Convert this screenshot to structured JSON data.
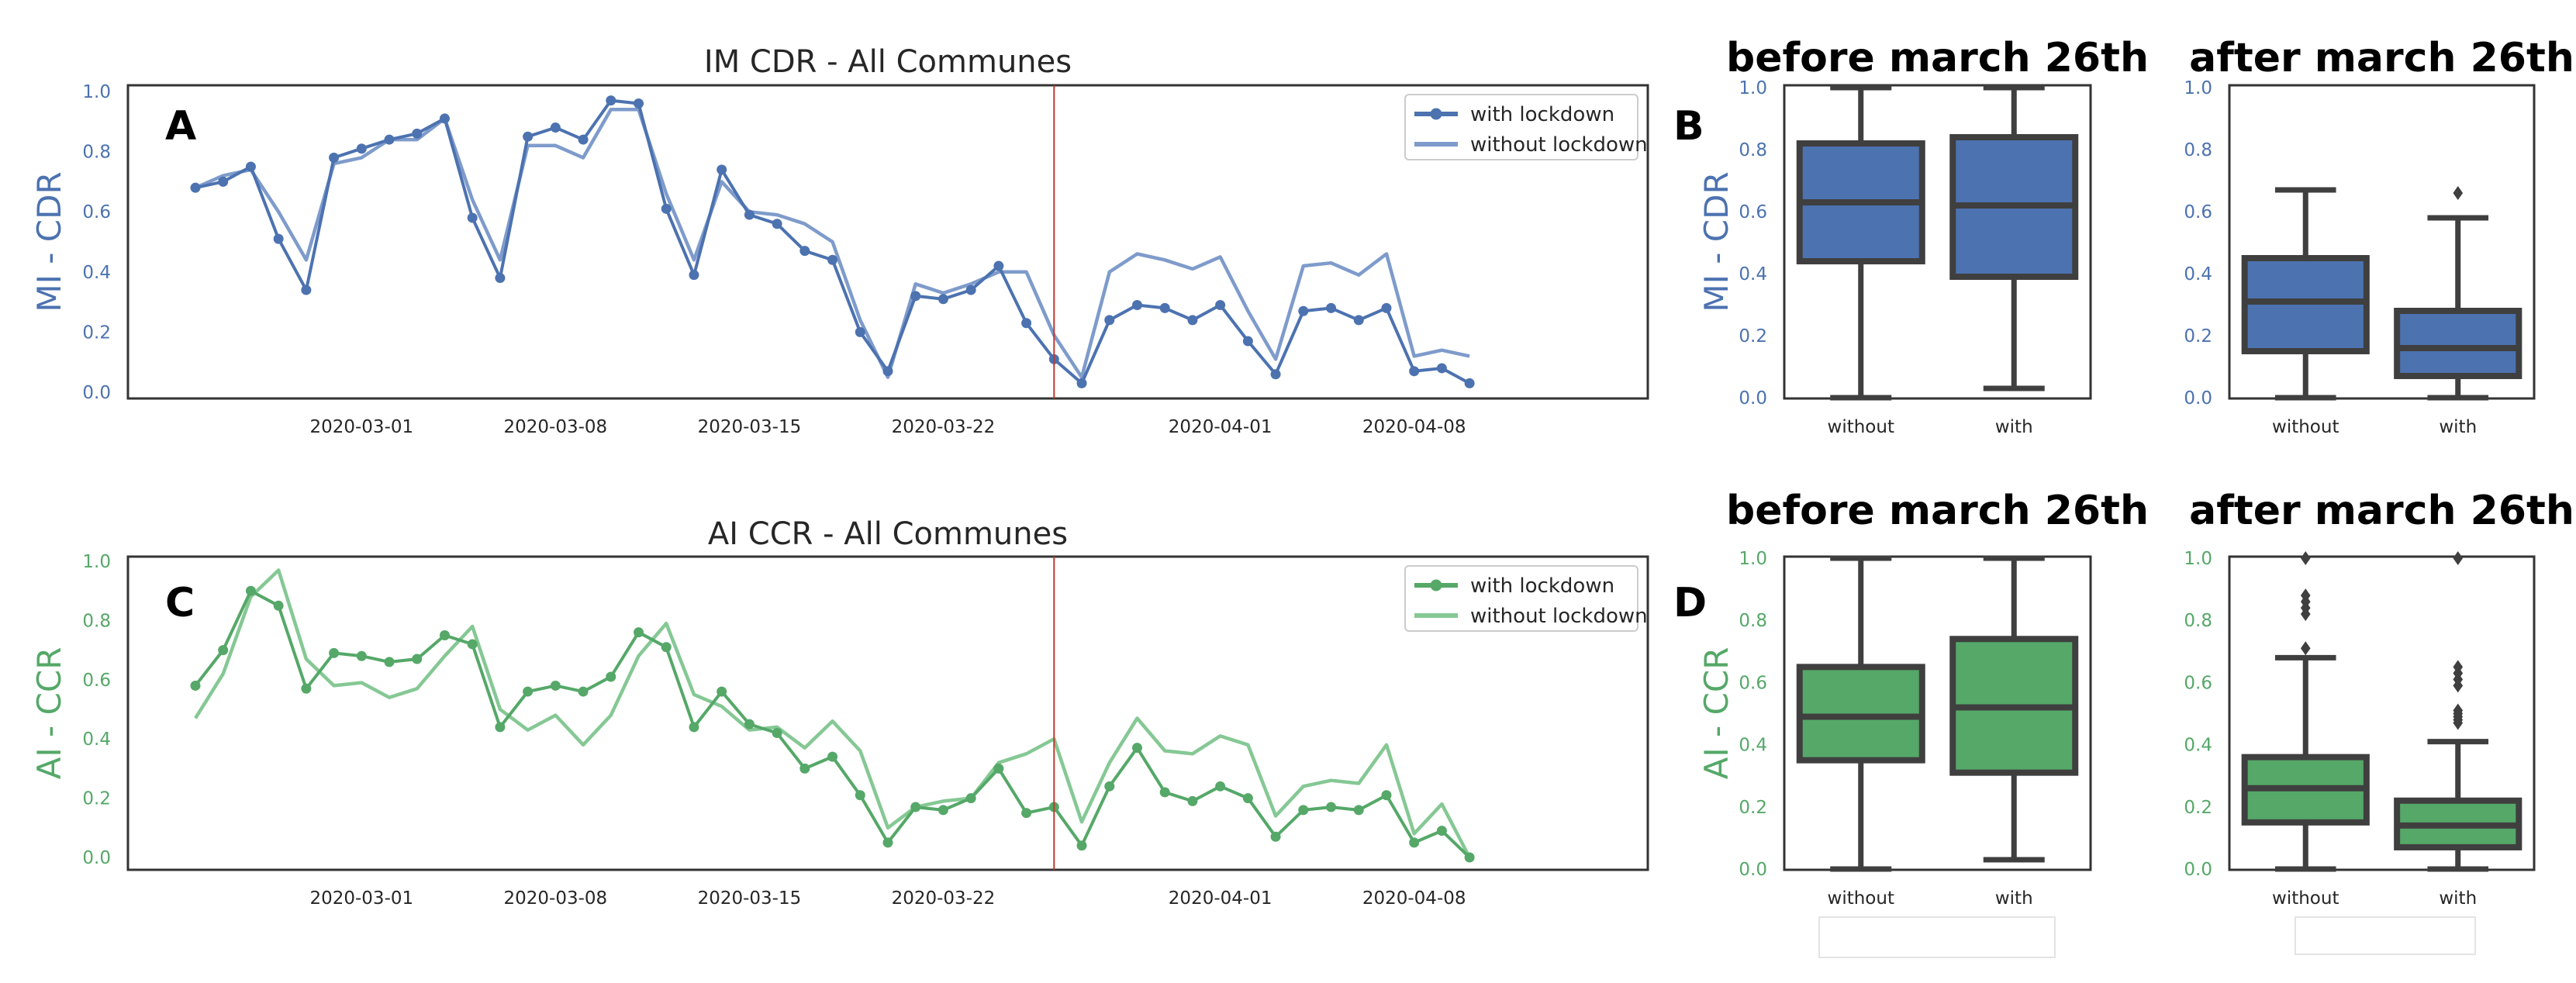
{
  "colors": {
    "blue": "#4C72B0",
    "blue_light": "#7E9BCB",
    "green": "#55A868",
    "green_light": "#85C894",
    "box_edge": "#3F3F3F",
    "vline": "#C0392B",
    "axis": "#333333"
  },
  "chart_data": [
    {
      "type": "line",
      "panel": "A",
      "title": "IM CDR - All Communes",
      "ylabel": "MI - CDR",
      "ylim": [
        0.0,
        1.0
      ],
      "yticks": [
        "0.0",
        "0.2",
        "0.4",
        "0.6",
        "0.8",
        "1.0"
      ],
      "x_start": "2020-02-24",
      "x_end": "2020-04-14",
      "xticks": [
        "2020-03-01",
        "2020-03-08",
        "2020-03-15",
        "2020-03-22",
        "2020-04-01",
        "2020-04-08"
      ],
      "vline_date": "2020-03-26",
      "legend_position": "top-right",
      "series": [
        {
          "name": "with lockdown",
          "marker": true,
          "values": [
            0.68,
            0.7,
            0.75,
            0.51,
            0.34,
            0.78,
            0.81,
            0.84,
            0.86,
            0.91,
            0.58,
            0.38,
            0.85,
            0.88,
            0.84,
            0.97,
            0.96,
            0.61,
            0.39,
            0.74,
            0.59,
            0.56,
            0.47,
            0.44,
            0.2,
            0.07,
            0.32,
            0.31,
            0.34,
            0.42,
            0.23,
            0.11,
            0.03,
            0.24,
            0.29,
            0.28,
            0.24,
            0.29,
            0.17,
            0.06,
            0.27,
            0.28,
            0.24,
            0.28,
            0.07,
            0.08,
            0.03
          ]
        },
        {
          "name": "without lockdown",
          "marker": false,
          "values": [
            0.68,
            0.72,
            0.74,
            0.6,
            0.44,
            0.76,
            0.78,
            0.84,
            0.84,
            0.91,
            0.64,
            0.44,
            0.82,
            0.82,
            0.78,
            0.94,
            0.94,
            0.66,
            0.44,
            0.7,
            0.6,
            0.59,
            0.56,
            0.5,
            0.24,
            0.05,
            0.36,
            0.33,
            0.36,
            0.4,
            0.4,
            0.19,
            0.05,
            0.4,
            0.46,
            0.44,
            0.41,
            0.45,
            0.27,
            0.11,
            0.42,
            0.43,
            0.39,
            0.46,
            0.12,
            0.14,
            0.12
          ]
        }
      ]
    },
    {
      "type": "box",
      "panel": "B",
      "title": "before march 26th",
      "ylabel": "MI - CDR",
      "ylim": [
        0.0,
        1.0
      ],
      "yticks": [
        "0.0",
        "0.2",
        "0.4",
        "0.6",
        "0.8",
        "1.0"
      ],
      "categories": [
        "without",
        "with"
      ],
      "boxes": [
        {
          "whislo": 0.0,
          "q1": 0.44,
          "med": 0.63,
          "q3": 0.82,
          "whishi": 1.0,
          "fliers": []
        },
        {
          "whislo": 0.03,
          "q1": 0.39,
          "med": 0.62,
          "q3": 0.84,
          "whishi": 1.0,
          "fliers": []
        }
      ]
    },
    {
      "type": "box",
      "panel": "B2",
      "title": "after march 26th",
      "ylabel": "",
      "ylim": [
        0.0,
        1.0
      ],
      "yticks": [
        "0.0",
        "0.2",
        "0.4",
        "0.6",
        "0.8",
        "1.0"
      ],
      "categories": [
        "without",
        "with"
      ],
      "boxes": [
        {
          "whislo": 0.0,
          "q1": 0.15,
          "med": 0.31,
          "q3": 0.45,
          "whishi": 0.67,
          "fliers": []
        },
        {
          "whislo": 0.0,
          "q1": 0.07,
          "med": 0.16,
          "q3": 0.28,
          "whishi": 0.58,
          "fliers": [
            0.66
          ]
        }
      ]
    },
    {
      "type": "line",
      "panel": "C",
      "title": "AI CCR - All Communes",
      "ylabel": "AI - CCR",
      "ylim": [
        0.0,
        1.0
      ],
      "yticks": [
        "0.0",
        "0.2",
        "0.4",
        "0.6",
        "0.8",
        "1.0"
      ],
      "x_start": "2020-02-24",
      "x_end": "2020-04-14",
      "xticks": [
        "2020-03-01",
        "2020-03-08",
        "2020-03-15",
        "2020-03-22",
        "2020-04-01",
        "2020-04-08"
      ],
      "vline_date": "2020-03-26",
      "legend_position": "top-right",
      "series": [
        {
          "name": "with lockdown",
          "marker": true,
          "values": [
            0.58,
            0.7,
            0.9,
            0.85,
            0.57,
            0.69,
            0.68,
            0.66,
            0.67,
            0.75,
            0.72,
            0.44,
            0.56,
            0.58,
            0.56,
            0.61,
            0.76,
            0.71,
            0.44,
            0.56,
            0.45,
            0.42,
            0.3,
            0.34,
            0.21,
            0.05,
            0.17,
            0.16,
            0.2,
            0.3,
            0.15,
            0.17,
            0.04,
            0.24,
            0.37,
            0.22,
            0.19,
            0.24,
            0.2,
            0.07,
            0.16,
            0.17,
            0.16,
            0.21,
            0.05,
            0.09,
            0.0
          ]
        },
        {
          "name": "without lockdown",
          "marker": false,
          "values": [
            0.47,
            0.62,
            0.88,
            0.97,
            0.67,
            0.58,
            0.59,
            0.54,
            0.57,
            0.68,
            0.78,
            0.5,
            0.43,
            0.48,
            0.38,
            0.48,
            0.68,
            0.79,
            0.55,
            0.51,
            0.43,
            0.44,
            0.37,
            0.46,
            0.36,
            0.1,
            0.17,
            0.19,
            0.2,
            0.32,
            0.35,
            0.4,
            0.12,
            0.32,
            0.47,
            0.36,
            0.35,
            0.41,
            0.38,
            0.14,
            0.24,
            0.26,
            0.25,
            0.38,
            0.08,
            0.18,
            0.0
          ]
        }
      ]
    },
    {
      "type": "box",
      "panel": "D",
      "title": "before march 26th",
      "ylabel": "AI - CCR",
      "ylim": [
        0.0,
        1.0
      ],
      "yticks": [
        "0.0",
        "0.2",
        "0.4",
        "0.6",
        "0.8",
        "1.0"
      ],
      "categories": [
        "without",
        "with"
      ],
      "boxes": [
        {
          "whislo": 0.0,
          "q1": 0.35,
          "med": 0.49,
          "q3": 0.65,
          "whishi": 1.0,
          "fliers": []
        },
        {
          "whislo": 0.03,
          "q1": 0.31,
          "med": 0.52,
          "q3": 0.74,
          "whishi": 1.0,
          "fliers": []
        }
      ]
    },
    {
      "type": "box",
      "panel": "D2",
      "title": "after march 26th",
      "ylabel": "",
      "ylim": [
        0.0,
        1.0
      ],
      "yticks": [
        "0.0",
        "0.2",
        "0.4",
        "0.6",
        "0.8",
        "1.0"
      ],
      "categories": [
        "without",
        "with"
      ],
      "boxes": [
        {
          "whislo": 0.0,
          "q1": 0.15,
          "med": 0.26,
          "q3": 0.36,
          "whishi": 0.68,
          "fliers": [
            0.71,
            0.82,
            0.84,
            0.86,
            0.88,
            1.0
          ]
        },
        {
          "whislo": 0.0,
          "q1": 0.07,
          "med": 0.14,
          "q3": 0.22,
          "whishi": 0.41,
          "fliers": [
            0.47,
            0.48,
            0.49,
            0.5,
            0.51,
            0.59,
            0.61,
            0.63,
            0.65,
            1.0
          ]
        }
      ]
    }
  ]
}
